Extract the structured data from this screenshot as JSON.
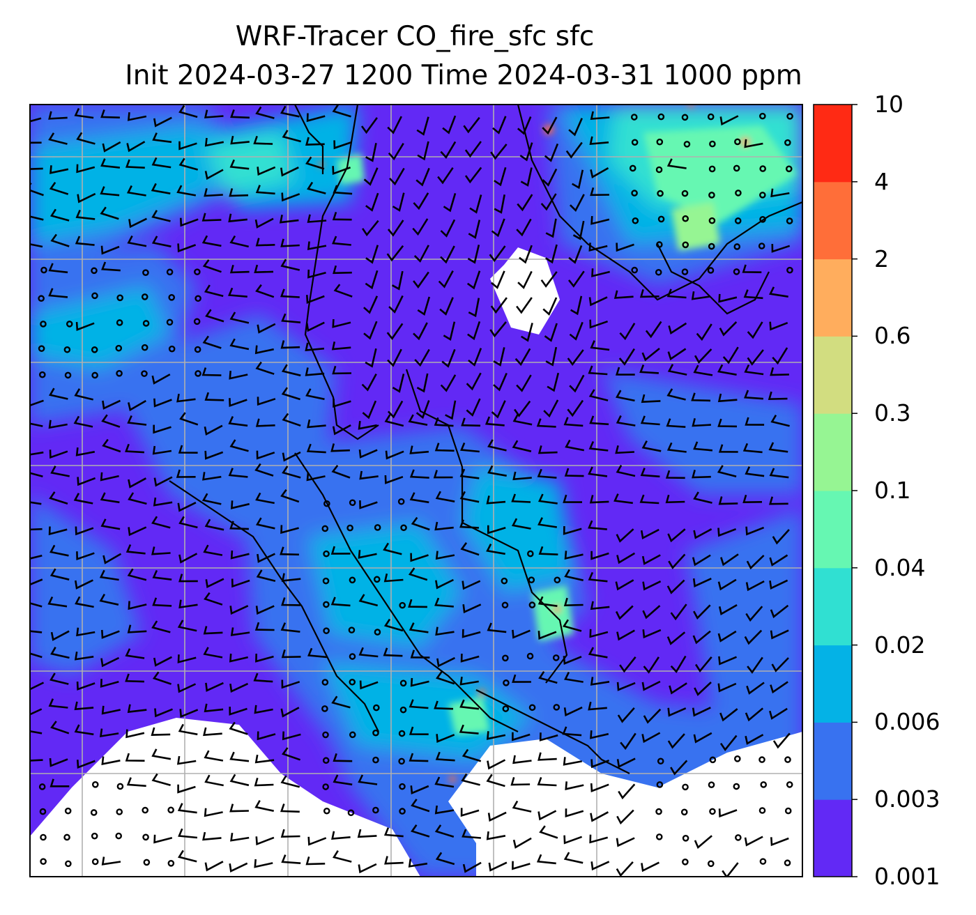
{
  "chart_data": {
    "type": "heatmap",
    "title_line1": "WRF-Tracer CO_fire_sfc sfc",
    "title_line2": "Init 2024-03-27 1200 Time 2024-03-31 1000 ppm",
    "variable": "CO_fire_sfc",
    "level": "sfc",
    "init": "2024-03-27 1200",
    "valid": "2024-03-31 1000",
    "units": "ppm",
    "grid": true,
    "colorbar": {
      "placement": "right",
      "levels": [
        "0.001",
        "0.003",
        "0.006",
        "0.02",
        "0.04",
        "0.1",
        "0.3",
        "0.6",
        "2",
        "4",
        "10"
      ],
      "colors": [
        "#6229f5",
        "#3872f0",
        "#04b2e6",
        "#30e0d2",
        "#66f7b2",
        "#96f593",
        "#d2dd80",
        "#ffad5d",
        "#ff6e39",
        "#ff2a14"
      ]
    },
    "overlays": [
      "wind-barbs",
      "coastlines",
      "country-borders",
      "missing-data-white"
    ]
  }
}
